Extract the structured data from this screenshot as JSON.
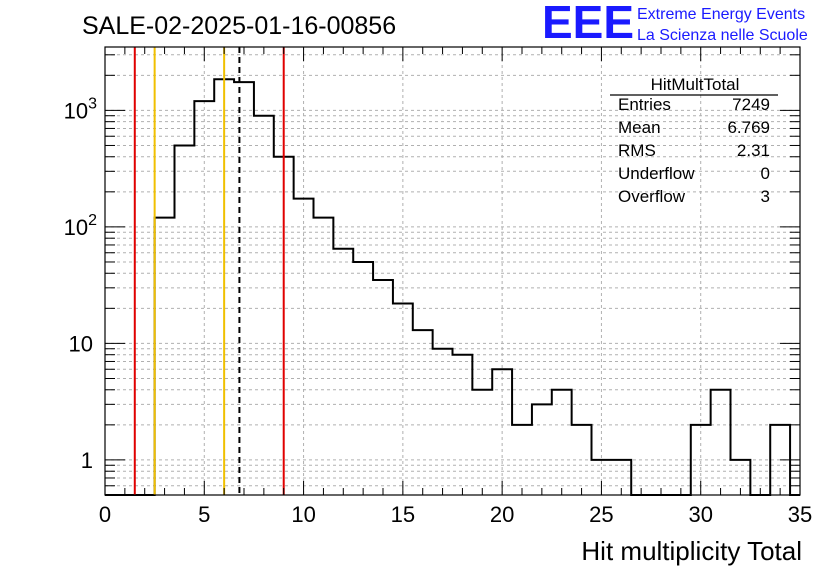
{
  "chart_data": {
    "type": "bar",
    "title": "SALE-02-2025-01-16-00856",
    "xlabel": "Hit multiplicity Total",
    "ylabel": "",
    "xlim": [
      0,
      35
    ],
    "ylim": [
      0.5,
      3500
    ],
    "yscale": "log",
    "x_ticks": [
      0,
      5,
      10,
      15,
      20,
      25,
      30,
      35
    ],
    "y_ticks": [
      {
        "value": 1,
        "label": "1"
      },
      {
        "value": 10,
        "label": "10"
      },
      {
        "value": 100,
        "label": "10",
        "exp": "2"
      },
      {
        "value": 1000,
        "label": "10",
        "exp": "3"
      }
    ],
    "bin_width": 1,
    "bins_x_low": [
      -0.5,
      0.5,
      1.5,
      2.5,
      3.5,
      4.5,
      5.5,
      6.5,
      7.5,
      8.5,
      9.5,
      10.5,
      11.5,
      12.5,
      13.5,
      14.5,
      15.5,
      16.5,
      17.5,
      18.5,
      19.5,
      20.5,
      21.5,
      22.5,
      23.5,
      24.5,
      25.5,
      26.5,
      27.5,
      28.5,
      29.5,
      30.5,
      31.5,
      32.5,
      33.5,
      34.5
    ],
    "values": [
      0,
      0,
      0,
      120,
      500,
      1200,
      1850,
      1750,
      900,
      400,
      175,
      120,
      65,
      50,
      35,
      22,
      13,
      9,
      8,
      4,
      6,
      2,
      3,
      4,
      2,
      1,
      1,
      0,
      0,
      0,
      2,
      4,
      1,
      0,
      2,
      0
    ],
    "vlines": [
      {
        "x": 1.5,
        "color": "#e00000",
        "style": "solid"
      },
      {
        "x": 2.5,
        "color": "#f0c000",
        "style": "solid"
      },
      {
        "x": 6.0,
        "color": "#f0c000",
        "style": "solid"
      },
      {
        "x": 6.769,
        "color": "#000000",
        "style": "dashed"
      },
      {
        "x": 9.0,
        "color": "#e00000",
        "style": "solid"
      }
    ],
    "stats": {
      "name": "HitMultTotal",
      "rows": [
        {
          "label": "Entries",
          "value": "7249"
        },
        {
          "label": "Mean",
          "value": "6.769"
        },
        {
          "label": "RMS",
          "value": "2.31"
        },
        {
          "label": "Underflow",
          "value": "0"
        },
        {
          "label": "Overflow",
          "value": "3"
        }
      ]
    }
  },
  "logo": {
    "mark": "EEE",
    "line1": "Extreme Energy Events",
    "line2": "La Scienza nelle Scuole"
  }
}
